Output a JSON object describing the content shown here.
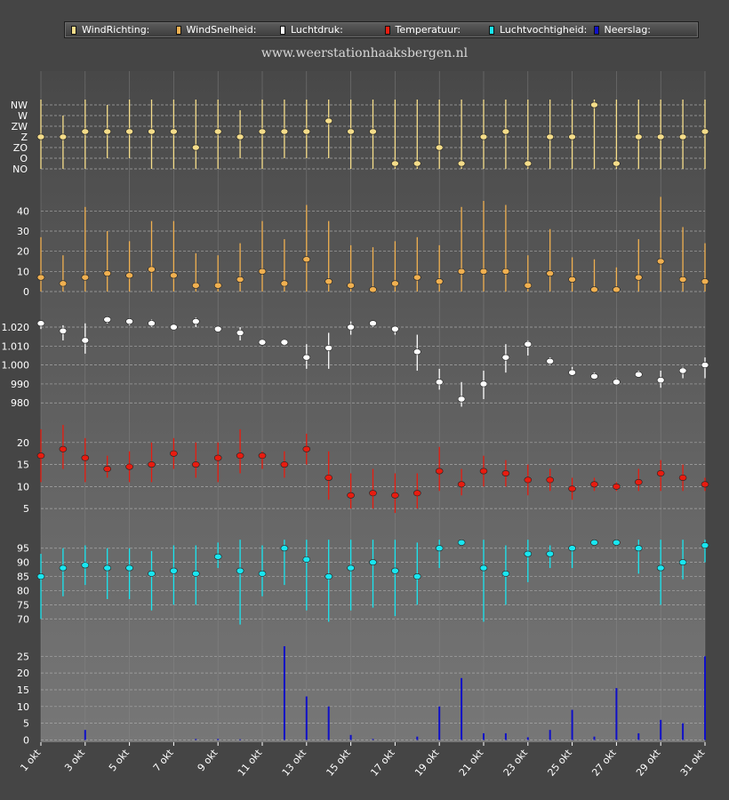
{
  "legend": {
    "items": [
      {
        "label": "WindRichting:",
        "color": "#f5dd8a"
      },
      {
        "label": "WindSnelheid:",
        "color": "#f0b050"
      },
      {
        "label": "Luchtdruk:",
        "color": "#ffffff"
      },
      {
        "label": "Temperatuur:",
        "color": "#e81c10"
      },
      {
        "label": "Luchtvochtigheid:",
        "color": "#19e6f0"
      },
      {
        "label": "Neerslag:",
        "color": "#1010c8"
      }
    ]
  },
  "site_title": "www.weerstationhaaksbergen.nl",
  "chart_data": [
    {
      "type": "scatter",
      "name": "WindRichting",
      "color": "#f5dd8a",
      "y_categories": [
        "NO",
        "O",
        "ZO",
        "Z",
        "ZW",
        "W",
        "NW"
      ],
      "x": [
        1,
        2,
        3,
        4,
        5,
        6,
        7,
        8,
        9,
        10,
        11,
        12,
        13,
        14,
        15,
        16,
        17,
        18,
        19,
        20,
        21,
        22,
        23,
        24,
        25,
        26,
        27,
        28,
        29,
        30,
        31
      ],
      "values": [
        3.0,
        3.0,
        3.5,
        3.5,
        3.5,
        3.5,
        3.5,
        2.0,
        3.5,
        3.0,
        3.5,
        3.5,
        3.5,
        4.5,
        3.5,
        3.5,
        0.5,
        0.5,
        2.0,
        0.5,
        3.0,
        3.5,
        0.5,
        3.0,
        3.0,
        6.0,
        0.5,
        3.0,
        3.0,
        3.0,
        3.5
      ],
      "low": [
        0,
        0,
        0,
        1,
        1,
        0,
        0,
        0,
        0,
        1,
        0,
        1,
        1,
        1,
        0,
        0,
        0,
        0,
        0,
        0,
        0,
        0,
        0,
        0,
        0,
        0,
        0,
        0,
        0,
        0,
        0
      ],
      "high": [
        6.5,
        5,
        6.5,
        6,
        6.5,
        6.5,
        6.5,
        6.5,
        6.5,
        5.5,
        6.5,
        6.5,
        6.5,
        6.5,
        6.5,
        6.5,
        6.5,
        6.5,
        6.5,
        6.5,
        6.5,
        6.5,
        6.5,
        6.5,
        6.5,
        6.5,
        6.5,
        6.5,
        6.5,
        6.5,
        6.5
      ]
    },
    {
      "type": "scatter",
      "name": "WindSnelheid",
      "color": "#f0b050",
      "yticks": [
        0,
        10,
        20,
        30,
        40
      ],
      "ylim": [
        0,
        45
      ],
      "x": [
        1,
        2,
        3,
        4,
        5,
        6,
        7,
        8,
        9,
        10,
        11,
        12,
        13,
        14,
        15,
        16,
        17,
        18,
        19,
        20,
        21,
        22,
        23,
        24,
        25,
        26,
        27,
        28,
        29,
        30,
        31
      ],
      "values": [
        7,
        4,
        7,
        9,
        8,
        11,
        8,
        3,
        3,
        6,
        10,
        4,
        16,
        5,
        3,
        1,
        4,
        7,
        5,
        10,
        10,
        10,
        3,
        9,
        6,
        1,
        1,
        7,
        15,
        6,
        5
      ],
      "low": [
        0,
        0,
        0,
        0,
        0,
        0,
        0,
        0,
        0,
        0,
        0,
        0,
        0,
        0,
        0,
        0,
        0,
        0,
        0,
        0,
        0,
        0,
        0,
        0,
        0,
        0,
        0,
        0,
        0,
        0,
        0
      ],
      "high": [
        27,
        18,
        42,
        30,
        25,
        35,
        35,
        19,
        18,
        24,
        35,
        26,
        43,
        35,
        23,
        22,
        25,
        27,
        23,
        42,
        45,
        43,
        18,
        31,
        17,
        16,
        12,
        26,
        47,
        32,
        24
      ]
    },
    {
      "type": "scatter",
      "name": "Luchtdruk",
      "color": "#ffffff",
      "yticks": [
        980,
        990,
        1000,
        1010,
        1020
      ],
      "ytick_labels": [
        "980",
        "990",
        "1.000",
        "1.010",
        "1.020"
      ],
      "ylim": [
        974,
        1028
      ],
      "x": [
        1,
        2,
        3,
        4,
        5,
        6,
        7,
        8,
        9,
        10,
        11,
        12,
        13,
        14,
        15,
        16,
        17,
        18,
        19,
        20,
        21,
        22,
        23,
        24,
        25,
        26,
        27,
        28,
        29,
        30,
        31
      ],
      "values": [
        1022,
        1018,
        1013,
        1024,
        1023,
        1022,
        1020,
        1023,
        1019,
        1017,
        1012,
        1012,
        1004,
        1009,
        1020,
        1022,
        1019,
        1007,
        991,
        982,
        990,
        1004,
        1011,
        1002,
        996,
        994,
        991,
        995,
        992,
        997,
        1000
      ],
      "low": [
        1019,
        1013,
        1006,
        1022,
        1021,
        1020,
        1019,
        1020,
        1018,
        1013,
        1011,
        1010,
        998,
        998,
        1016,
        1020,
        1016,
        997,
        987,
        978,
        982,
        996,
        1005,
        1000,
        995,
        993,
        990,
        994,
        988,
        993,
        993
      ],
      "high": [
        1023,
        1021,
        1022,
        1025,
        1024,
        1024,
        1021,
        1025,
        1020,
        1020,
        1013,
        1013,
        1011,
        1017,
        1023,
        1023,
        1020,
        1016,
        998,
        991,
        997,
        1011,
        1013,
        1004,
        999,
        996,
        993,
        997,
        997,
        999,
        1004
      ]
    },
    {
      "type": "scatter",
      "name": "Temperatuur",
      "color": "#e81c10",
      "yticks": [
        5,
        10,
        15,
        20
      ],
      "ylim": [
        2,
        24
      ],
      "x": [
        1,
        2,
        3,
        4,
        5,
        6,
        7,
        8,
        9,
        10,
        11,
        12,
        13,
        14,
        15,
        16,
        17,
        18,
        19,
        20,
        21,
        22,
        23,
        24,
        25,
        26,
        27,
        28,
        29,
        30,
        31
      ],
      "values": [
        17,
        18.5,
        16.5,
        14,
        14.5,
        15,
        17.5,
        15,
        16.5,
        17,
        17,
        15,
        18.5,
        12,
        8,
        8.5,
        8,
        8.5,
        13.5,
        10.5,
        13.5,
        13,
        11.5,
        11.5,
        9.5,
        10.5,
        10,
        11,
        13,
        12,
        10.5
      ],
      "low": [
        11,
        14,
        11,
        12,
        11,
        11,
        14,
        12,
        11,
        13,
        14,
        12,
        15,
        7,
        5,
        5,
        4,
        5,
        9,
        8,
        10,
        10,
        8,
        9,
        7,
        9,
        9,
        9,
        9,
        9,
        9
      ],
      "high": [
        23,
        24,
        21,
        17,
        18,
        20,
        21,
        20,
        20,
        23,
        18,
        18,
        22,
        18,
        13,
        14,
        13,
        13,
        19,
        14,
        17,
        16,
        15,
        14,
        12,
        12,
        11,
        14,
        16,
        15,
        12
      ]
    },
    {
      "type": "scatter",
      "name": "Luchtvochtigheid",
      "color": "#19e6f0",
      "yticks": [
        70,
        75,
        80,
        85,
        90,
        95
      ],
      "ylim": [
        66,
        99
      ],
      "x": [
        1,
        2,
        3,
        4,
        5,
        6,
        7,
        8,
        9,
        10,
        11,
        12,
        13,
        14,
        15,
        16,
        17,
        18,
        19,
        20,
        21,
        22,
        23,
        24,
        25,
        26,
        27,
        28,
        29,
        30,
        31
      ],
      "values": [
        85,
        88,
        89,
        88,
        88,
        86,
        87,
        86,
        92,
        87,
        86,
        95,
        91,
        85,
        88,
        90,
        87,
        85,
        95,
        97,
        88,
        86,
        93,
        93,
        95,
        97,
        97,
        95,
        88,
        90,
        96
      ],
      "low": [
        70,
        78,
        82,
        77,
        77,
        73,
        75,
        75,
        88,
        68,
        78,
        82,
        73,
        69,
        73,
        74,
        71,
        75,
        88,
        97,
        69,
        75,
        83,
        88,
        88,
        97,
        97,
        86,
        75,
        84,
        90
      ],
      "high": [
        93,
        95,
        96,
        95,
        95,
        94,
        96,
        96,
        97,
        98,
        96,
        98,
        98,
        98,
        98,
        98,
        98,
        97,
        98,
        98,
        98,
        96,
        98,
        96,
        96,
        98,
        98,
        98,
        98,
        98,
        98
      ]
    },
    {
      "type": "bar",
      "name": "Neerslag",
      "color": "#1010c8",
      "yticks": [
        0,
        5,
        10,
        15,
        20,
        25
      ],
      "ylim": [
        -2,
        28
      ],
      "x": [
        1,
        2,
        3,
        4,
        5,
        6,
        7,
        8,
        9,
        10,
        11,
        12,
        13,
        14,
        15,
        16,
        17,
        18,
        19,
        20,
        21,
        22,
        23,
        24,
        25,
        26,
        27,
        28,
        29,
        30,
        31
      ],
      "values": [
        0,
        0,
        3,
        0,
        0,
        0,
        0,
        0.3,
        0.3,
        0.2,
        0,
        28,
        13,
        10,
        1.5,
        0.3,
        0,
        1,
        10,
        18.5,
        2,
        2,
        0.8,
        3,
        9,
        1,
        15.5,
        2,
        6,
        5,
        25
      ]
    }
  ],
  "x_axis": {
    "tick_days": [
      1,
      3,
      5,
      7,
      9,
      11,
      13,
      15,
      17,
      19,
      21,
      23,
      25,
      27,
      29,
      31
    ],
    "tick_labels": [
      "1 okt",
      "3 okt",
      "5 okt",
      "7 okt",
      "9 okt",
      "11 okt",
      "13 okt",
      "15 okt",
      "17 okt",
      "19 okt",
      "21 okt",
      "23 okt",
      "25 okt",
      "27 okt",
      "29 okt",
      "31 okt"
    ]
  }
}
